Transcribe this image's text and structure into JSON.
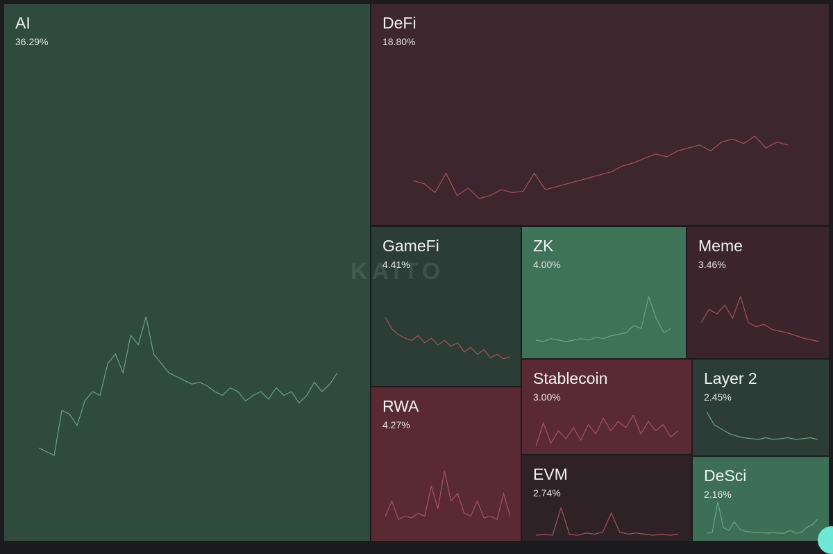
{
  "chart_data": {
    "type": "treemap",
    "watermark": "KAITO",
    "colors": {
      "up_line": "#6aa585",
      "down_line": "#a8545c"
    },
    "items": [
      {
        "name": "AI",
        "value": 36.29,
        "label": "36.29%",
        "trend": "up",
        "spark": [
          10,
          8,
          6,
          30,
          28,
          22,
          35,
          40,
          38,
          55,
          60,
          50,
          70,
          65,
          80,
          60,
          55,
          50,
          48,
          46,
          44,
          45,
          43,
          40,
          38,
          42,
          40,
          35,
          38,
          40,
          36,
          42,
          38,
          40,
          34,
          38,
          45,
          40,
          44,
          50
        ]
      },
      {
        "name": "DeFi",
        "value": 18.8,
        "label": "18.80%",
        "trend": "down",
        "spark": [
          40,
          38,
          32,
          45,
          30,
          35,
          28,
          30,
          34,
          32,
          33,
          45,
          34,
          36,
          38,
          40,
          42,
          44,
          46,
          50,
          52,
          55,
          58,
          56,
          60,
          62,
          64,
          60,
          66,
          68,
          65,
          70,
          62,
          66,
          64
        ]
      },
      {
        "name": "GameFi",
        "value": 4.41,
        "label": "4.41%",
        "trend": "down",
        "spark": [
          60,
          50,
          45,
          42,
          40,
          44,
          38,
          42,
          36,
          40,
          35,
          38,
          30,
          34,
          28,
          32,
          25,
          28,
          24,
          26
        ]
      },
      {
        "name": "ZK",
        "value": 4.0,
        "label": "4.00%",
        "trend": "up",
        "spark": [
          10,
          9,
          11,
          10,
          9,
          10,
          11,
          10,
          12,
          11,
          13,
          14,
          15,
          20,
          18,
          40,
          25,
          15,
          18
        ]
      },
      {
        "name": "Meme",
        "value": 3.46,
        "label": "3.46%",
        "trend": "down",
        "spark": [
          30,
          45,
          40,
          50,
          35,
          60,
          30,
          25,
          28,
          22,
          20,
          18,
          15,
          12,
          10,
          8
        ]
      },
      {
        "name": "RWA",
        "value": 4.27,
        "label": "4.27%",
        "trend": "down",
        "spark": [
          10,
          20,
          8,
          10,
          9,
          12,
          10,
          30,
          15,
          40,
          20,
          25,
          12,
          10,
          20,
          9,
          10,
          8,
          25,
          10
        ]
      },
      {
        "name": "Stablecoin",
        "value": 3.0,
        "label": "3.00%",
        "trend": "down",
        "spark": [
          10,
          25,
          12,
          20,
          15,
          22,
          14,
          24,
          18,
          28,
          20,
          26,
          22,
          30,
          18,
          26,
          20,
          24,
          16,
          20
        ]
      },
      {
        "name": "Layer 2",
        "value": 2.45,
        "label": "2.45%",
        "trend": "up",
        "spark": [
          40,
          25,
          20,
          15,
          12,
          10,
          9,
          8,
          10,
          8,
          9,
          10,
          8,
          9,
          10,
          8
        ]
      },
      {
        "name": "EVM",
        "value": 2.74,
        "label": "2.74%",
        "trend": "down",
        "spark": [
          5,
          6,
          5,
          30,
          6,
          5,
          7,
          6,
          8,
          25,
          8,
          6,
          7,
          6,
          5,
          6,
          5,
          6
        ]
      },
      {
        "name": "DeSci",
        "value": 2.16,
        "label": "2.16%",
        "trend": "up",
        "spark": [
          5,
          6,
          60,
          15,
          10,
          25,
          12,
          8,
          7,
          6,
          6,
          5,
          6,
          5,
          5,
          10,
          5,
          6,
          15,
          20,
          30
        ]
      }
    ]
  }
}
